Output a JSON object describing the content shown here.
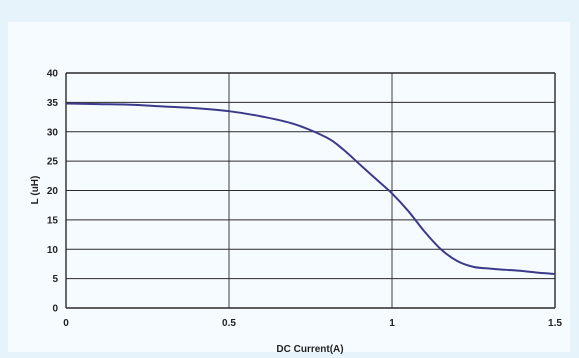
{
  "chart_data": {
    "type": "line",
    "title": "",
    "xlabel": "DC Current(A)",
    "ylabel": "L (uH)",
    "xlim": [
      0,
      1.5
    ],
    "ylim": [
      0,
      40
    ],
    "grid": true,
    "x_ticks": [
      "0",
      "0.5",
      "1",
      "1.5"
    ],
    "y_ticks": [
      "0",
      "5",
      "10",
      "15",
      "20",
      "25",
      "30",
      "35",
      "40"
    ],
    "series": [
      {
        "color": "#3b3a8a",
        "x": [
          0,
          0.1,
          0.2,
          0.3,
          0.4,
          0.5,
          0.6,
          0.7,
          0.8,
          0.85,
          0.9,
          0.95,
          1.0,
          1.05,
          1.1,
          1.15,
          1.2,
          1.25,
          1.3,
          1.35,
          1.4,
          1.45,
          1.5
        ],
        "y": [
          34.8,
          34.7,
          34.6,
          34.3,
          34.0,
          33.5,
          32.6,
          31.3,
          29.0,
          27.0,
          24.5,
          22.0,
          19.5,
          16.5,
          13.0,
          10.0,
          8.0,
          7.0,
          6.7,
          6.5,
          6.3,
          6.0,
          5.8
        ]
      }
    ]
  },
  "colors": {
    "background": "#e7f3fb",
    "panel": "#f6fbff",
    "grid": "#2a2a2a",
    "line": "#3b3a8a"
  }
}
